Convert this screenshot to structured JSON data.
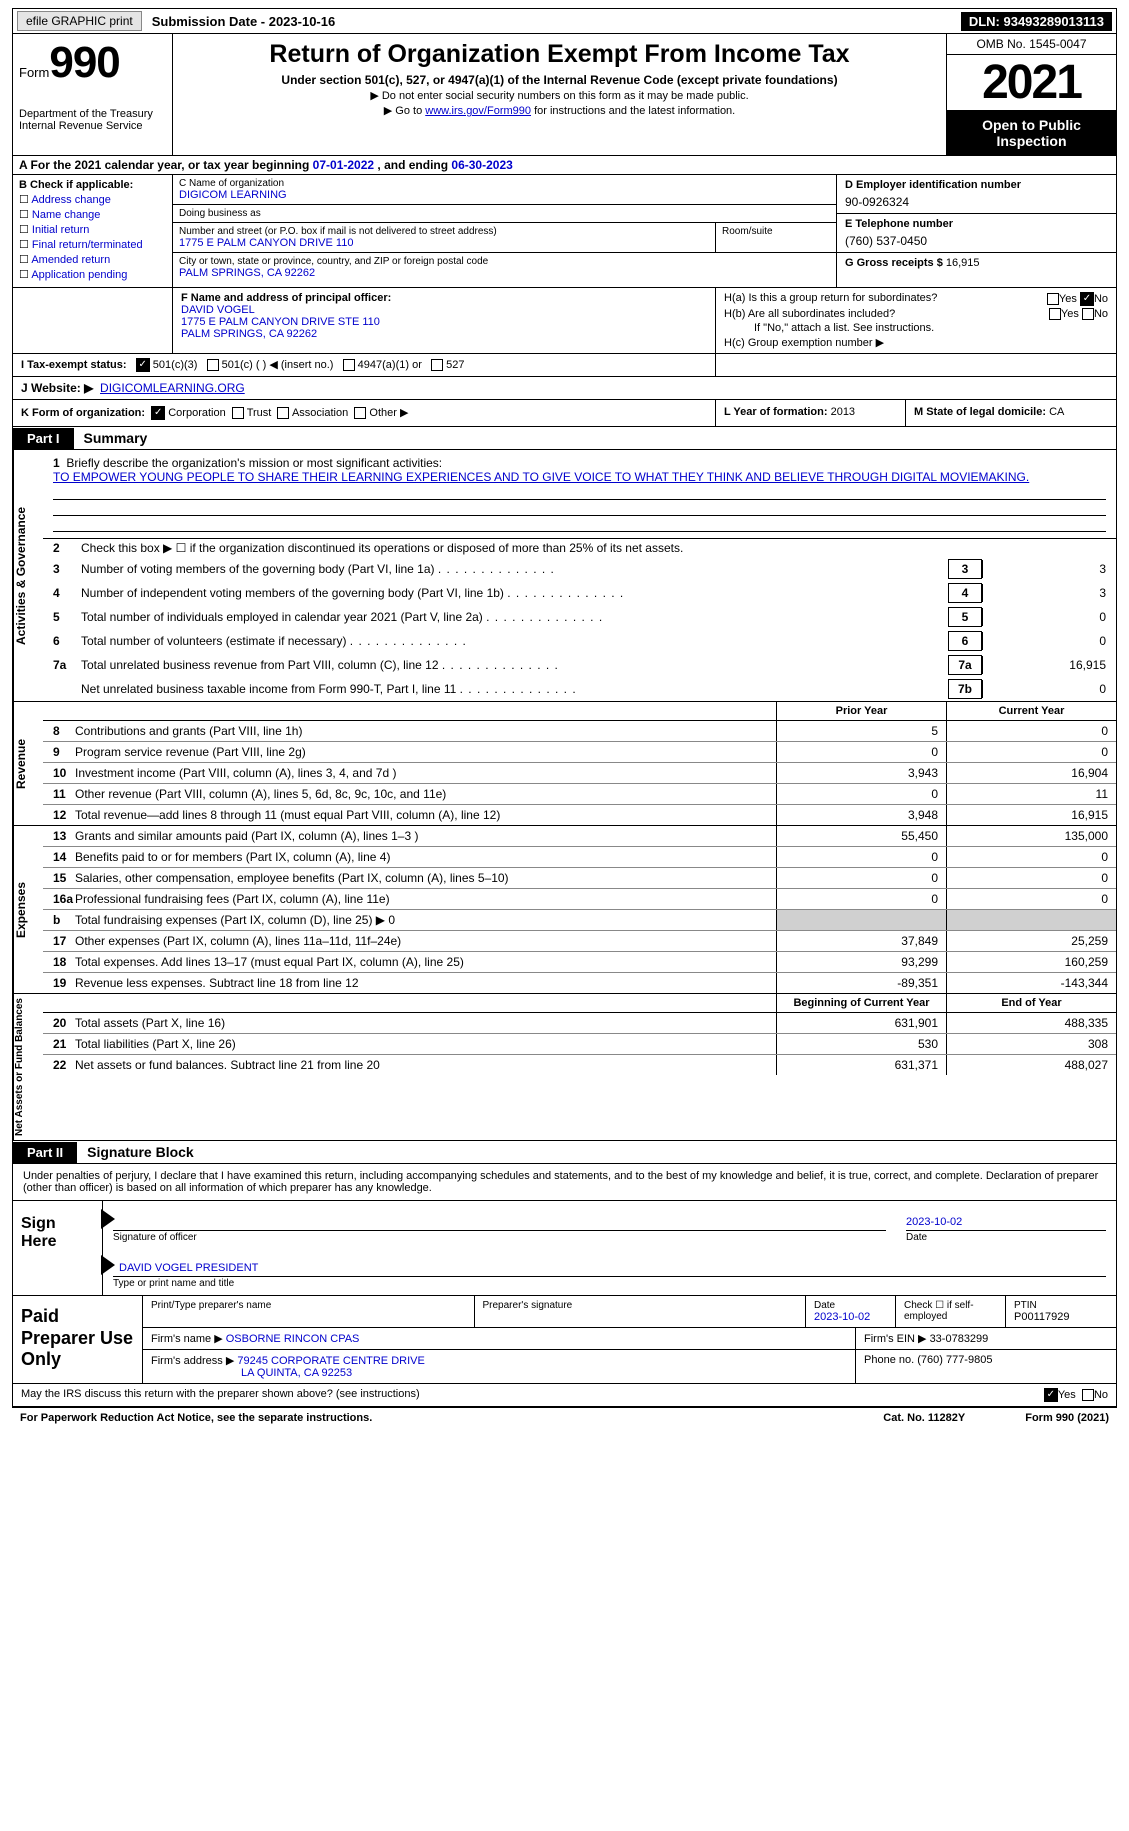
{
  "top": {
    "efile": "efile GRAPHIC print",
    "sub_label": "Submission Date - 2023-10-16",
    "dln": "DLN: 93493289013113"
  },
  "header": {
    "form_word": "Form",
    "form_num": "990",
    "title": "Return of Organization Exempt From Income Tax",
    "subtitle": "Under section 501(c), 527, or 4947(a)(1) of the Internal Revenue Code (except private foundations)",
    "note1": "Do not enter social security numbers on this form as it may be made public.",
    "note2_pre": "Go to ",
    "note2_link": "www.irs.gov/Form990",
    "note2_post": " for instructions and the latest information.",
    "dept": "Department of the Treasury Internal Revenue Service",
    "omb": "OMB No. 1545-0047",
    "year": "2021",
    "inspection": "Open to Public Inspection"
  },
  "row_a": {
    "pre": "A For the 2021 calendar year, or tax year beginning ",
    "begin": "07-01-2022",
    "mid": " , and ending ",
    "end": "06-30-2023"
  },
  "col_b": {
    "header": "B Check if applicable:",
    "opts": [
      "Address change",
      "Name change",
      "Initial return",
      "Final return/terminated",
      "Amended return",
      "Application pending"
    ]
  },
  "col_c": {
    "name_lbl": "C Name of organization",
    "name": "DIGICOM LEARNING",
    "dba_lbl": "Doing business as",
    "dba": "",
    "street_lbl": "Number and street (or P.O. box if mail is not delivered to street address)",
    "street": "1775 E PALM CANYON DRIVE 110",
    "room_lbl": "Room/suite",
    "room": "",
    "city_lbl": "City or town, state or province, country, and ZIP or foreign postal code",
    "city": "PALM SPRINGS, CA  92262"
  },
  "col_d": {
    "ein_lbl": "D Employer identification number",
    "ein": "90-0926324",
    "phone_lbl": "E Telephone number",
    "phone": "(760) 537-0450",
    "gross_lbl": "G Gross receipts $",
    "gross": "16,915"
  },
  "row_f": {
    "lbl": "F Name and address of principal officer:",
    "name": "DAVID VOGEL",
    "addr1": "1775 E PALM CANYON DRIVE STE 110",
    "addr2": "PALM SPRINGS, CA  92262"
  },
  "row_h": {
    "ha": "H(a)  Is this a group return for subordinates?",
    "hb": "H(b)  Are all subordinates included?",
    "hb_note": "If \"No,\" attach a list. See instructions.",
    "hc": "H(c)  Group exemption number ▶",
    "yes": "Yes",
    "no": "No"
  },
  "row_i": {
    "lbl": "I   Tax-exempt status:",
    "o1": "501(c)(3)",
    "o2": "501(c) (  ) ◀ (insert no.)",
    "o3": "4947(a)(1) or",
    "o4": "527"
  },
  "row_j": {
    "lbl": "J   Website: ▶",
    "val": "DIGICOMLEARNING.ORG"
  },
  "row_k": {
    "lbl": "K Form of organization:",
    "o1": "Corporation",
    "o2": "Trust",
    "o3": "Association",
    "o4": "Other ▶"
  },
  "row_l": {
    "lbl": "L Year of formation:",
    "val": "2013"
  },
  "row_m": {
    "lbl": "M State of legal domicile:",
    "val": "CA"
  },
  "parts": {
    "p1_label": "Part I",
    "p1_title": "Summary",
    "p2_label": "Part II",
    "p2_title": "Signature Block"
  },
  "vtabs": {
    "ag": "Activities & Governance",
    "rev": "Revenue",
    "exp": "Expenses",
    "na": "Net Assets or Fund Balances"
  },
  "mission": {
    "num": "1",
    "lbl": "Briefly describe the organization's mission or most significant activities:",
    "txt": "TO EMPOWER YOUNG PEOPLE TO SHARE THEIR LEARNING EXPERIENCES AND TO GIVE VOICE TO WHAT THEY THINK AND BELIEVE THROUGH DIGITAL MOVIEMAKING."
  },
  "lines_ag": [
    {
      "n": "2",
      "d": "Check this box ▶ ☐  if the organization discontinued its operations or disposed of more than 25% of its net assets.",
      "box": "",
      "v": ""
    },
    {
      "n": "3",
      "d": "Number of voting members of the governing body (Part VI, line 1a)",
      "box": "3",
      "v": "3"
    },
    {
      "n": "4",
      "d": "Number of independent voting members of the governing body (Part VI, line 1b)",
      "box": "4",
      "v": "3"
    },
    {
      "n": "5",
      "d": "Total number of individuals employed in calendar year 2021 (Part V, line 2a)",
      "box": "5",
      "v": "0"
    },
    {
      "n": "6",
      "d": "Total number of volunteers (estimate if necessary)",
      "box": "6",
      "v": "0"
    },
    {
      "n": "7a",
      "d": "Total unrelated business revenue from Part VIII, column (C), line 12",
      "box": "7a",
      "v": "16,915"
    },
    {
      "n": "",
      "d": "Net unrelated business taxable income from Form 990-T, Part I, line 11",
      "box": "7b",
      "v": "0"
    }
  ],
  "cols": {
    "prior": "Prior Year",
    "current": "Current Year",
    "boy": "Beginning of Current Year",
    "eoy": "End of Year"
  },
  "rev_rows": [
    {
      "n": "8",
      "d": "Contributions and grants (Part VIII, line 1h)",
      "p": "5",
      "c": "0"
    },
    {
      "n": "9",
      "d": "Program service revenue (Part VIII, line 2g)",
      "p": "0",
      "c": "0"
    },
    {
      "n": "10",
      "d": "Investment income (Part VIII, column (A), lines 3, 4, and 7d )",
      "p": "3,943",
      "c": "16,904"
    },
    {
      "n": "11",
      "d": "Other revenue (Part VIII, column (A), lines 5, 6d, 8c, 9c, 10c, and 11e)",
      "p": "0",
      "c": "11"
    },
    {
      "n": "12",
      "d": "Total revenue—add lines 8 through 11 (must equal Part VIII, column (A), line 12)",
      "p": "3,948",
      "c": "16,915"
    }
  ],
  "exp_rows": [
    {
      "n": "13",
      "d": "Grants and similar amounts paid (Part IX, column (A), lines 1–3 )",
      "p": "55,450",
      "c": "135,000"
    },
    {
      "n": "14",
      "d": "Benefits paid to or for members (Part IX, column (A), line 4)",
      "p": "0",
      "c": "0"
    },
    {
      "n": "15",
      "d": "Salaries, other compensation, employee benefits (Part IX, column (A), lines 5–10)",
      "p": "0",
      "c": "0"
    },
    {
      "n": "16a",
      "d": "Professional fundraising fees (Part IX, column (A), line 11e)",
      "p": "0",
      "c": "0"
    },
    {
      "n": "b",
      "d": "Total fundraising expenses (Part IX, column (D), line 25) ▶ 0",
      "p": "",
      "c": "",
      "shaded": true
    },
    {
      "n": "17",
      "d": "Other expenses (Part IX, column (A), lines 11a–11d, 11f–24e)",
      "p": "37,849",
      "c": "25,259"
    },
    {
      "n": "18",
      "d": "Total expenses. Add lines 13–17 (must equal Part IX, column (A), line 25)",
      "p": "93,299",
      "c": "160,259"
    },
    {
      "n": "19",
      "d": "Revenue less expenses. Subtract line 18 from line 12",
      "p": "-89,351",
      "c": "-143,344"
    }
  ],
  "na_rows": [
    {
      "n": "20",
      "d": "Total assets (Part X, line 16)",
      "p": "631,901",
      "c": "488,335"
    },
    {
      "n": "21",
      "d": "Total liabilities (Part X, line 26)",
      "p": "530",
      "c": "308"
    },
    {
      "n": "22",
      "d": "Net assets or fund balances. Subtract line 21 from line 20",
      "p": "631,371",
      "c": "488,027"
    }
  ],
  "sig": {
    "intro": "Under penalties of perjury, I declare that I have examined this return, including accompanying schedules and statements, and to the best of my knowledge and belief, it is true, correct, and complete. Declaration of preparer (other than officer) is based on all information of which preparer has any knowledge.",
    "sign_here": "Sign Here",
    "sig_lbl": "Signature of officer",
    "date_lbl": "Date",
    "date": "2023-10-02",
    "name": "DAVID VOGEL PRESIDENT",
    "name_lbl": "Type or print name and title"
  },
  "paid": {
    "title": "Paid Preparer Use Only",
    "h1": "Print/Type preparer's name",
    "h2": "Preparer's signature",
    "h3_lbl": "Date",
    "h3": "2023-10-02",
    "h4": "Check ☐ if self-employed",
    "h5_lbl": "PTIN",
    "h5": "P00117929",
    "firm_lbl": "Firm's name   ▶",
    "firm": "OSBORNE RINCON CPAS",
    "ein_lbl": "Firm's EIN ▶",
    "ein": "33-0783299",
    "addr_lbl": "Firm's address ▶",
    "addr1": "79245 CORPORATE CENTRE DRIVE",
    "addr2": "LA QUINTA, CA  92253",
    "phone_lbl": "Phone no.",
    "phone": "(760) 777-9805"
  },
  "footer": {
    "discuss": "May the IRS discuss this return with the preparer shown above? (see instructions)",
    "paperwork": "For Paperwork Reduction Act Notice, see the separate instructions.",
    "cat": "Cat. No. 11282Y",
    "form": "Form 990 (2021)",
    "yes": "Yes",
    "no": "No"
  }
}
